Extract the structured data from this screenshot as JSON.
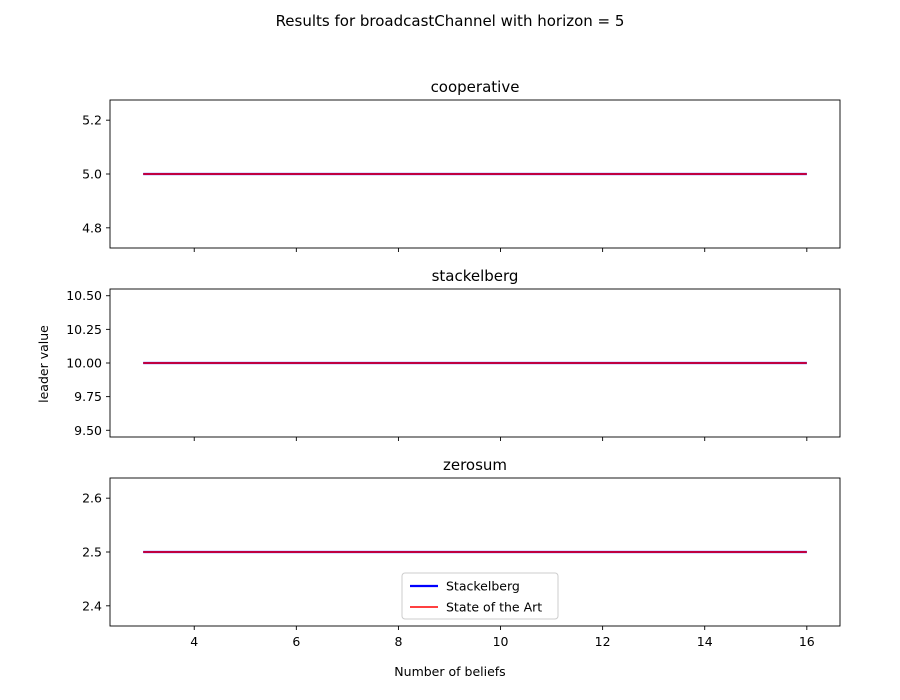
{
  "figure": {
    "suptitle": "Results for broadcastChannel with horizon = 5",
    "xlabel": "Number of beliefs",
    "ylabel": "leader value"
  },
  "chart_data": [
    {
      "type": "line",
      "title": "cooperative",
      "xlabel": "",
      "ylabel": "",
      "xlim": [
        2.35,
        16.65
      ],
      "ylim": [
        4.725,
        5.275
      ],
      "x_ticks": [
        4,
        6,
        8,
        10,
        12,
        14,
        16
      ],
      "x_tick_labels_shown": false,
      "y_ticks": [
        4.8,
        5.0,
        5.2
      ],
      "y_tick_labels": [
        "4.8",
        "5.0",
        "5.2"
      ],
      "x": [
        3,
        16
      ],
      "series": [
        {
          "name": "Stackelberg",
          "color": "#0000ff",
          "values": [
            5.0,
            5.0
          ]
        },
        {
          "name": "State of the Art",
          "color": "#ff0000",
          "values": [
            5.0,
            5.0
          ]
        }
      ],
      "grid": false,
      "legend": false
    },
    {
      "type": "line",
      "title": "stackelberg",
      "xlabel": "",
      "ylabel": "leader value",
      "xlim": [
        2.35,
        16.65
      ],
      "ylim": [
        9.45,
        10.55
      ],
      "x_ticks": [
        4,
        6,
        8,
        10,
        12,
        14,
        16
      ],
      "x_tick_labels_shown": false,
      "y_ticks": [
        9.5,
        9.75,
        10.0,
        10.25,
        10.5
      ],
      "y_tick_labels": [
        "9.50",
        "9.75",
        "10.00",
        "10.25",
        "10.50"
      ],
      "x": [
        3,
        16
      ],
      "series": [
        {
          "name": "Stackelberg",
          "color": "#0000ff",
          "values": [
            10.0,
            10.0
          ]
        },
        {
          "name": "State of the Art",
          "color": "#ff0000",
          "values": [
            10.0,
            10.0
          ]
        }
      ],
      "grid": false,
      "legend": false
    },
    {
      "type": "line",
      "title": "zerosum",
      "xlabel": "Number of beliefs",
      "ylabel": "",
      "xlim": [
        2.35,
        16.65
      ],
      "ylim": [
        2.3625,
        2.6375
      ],
      "x_ticks": [
        4,
        6,
        8,
        10,
        12,
        14,
        16
      ],
      "x_tick_labels": [
        "4",
        "6",
        "8",
        "10",
        "12",
        "14",
        "16"
      ],
      "x_tick_labels_shown": true,
      "y_ticks": [
        2.4,
        2.5,
        2.6
      ],
      "y_tick_labels": [
        "2.4",
        "2.5",
        "2.6"
      ],
      "x": [
        3,
        16
      ],
      "series": [
        {
          "name": "Stackelberg",
          "color": "#0000ff",
          "values": [
            2.5,
            2.5
          ]
        },
        {
          "name": "State of the Art",
          "color": "#ff0000",
          "values": [
            2.5,
            2.5
          ]
        }
      ],
      "grid": false,
      "legend": "lower center"
    }
  ]
}
